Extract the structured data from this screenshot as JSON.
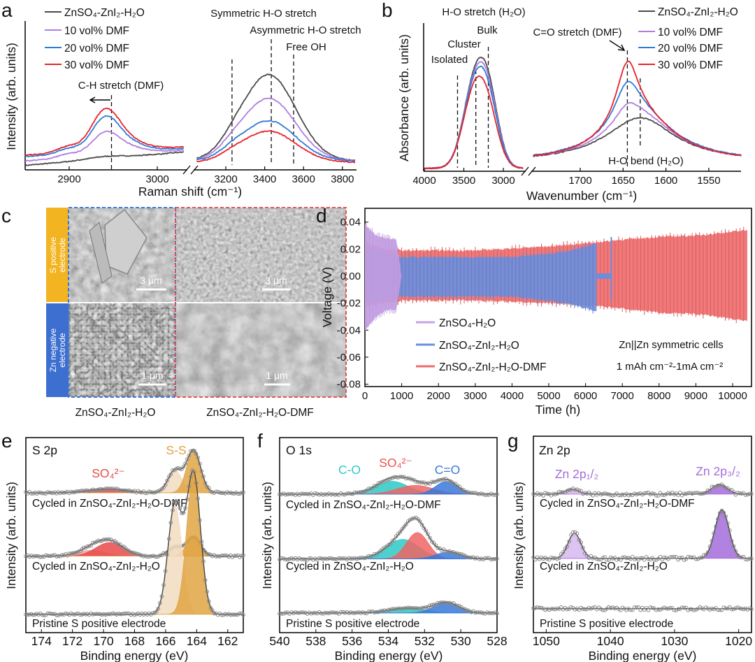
{
  "panel_letters": {
    "a": "a",
    "b": "b",
    "c": "c",
    "d": "d",
    "e": "e",
    "f": "f",
    "g": "g"
  },
  "chart_data": {
    "a": {
      "type": "line",
      "xlabel": "Raman shift (cm⁻¹)",
      "ylabel": "Intensity (arb. units)",
      "xticks": [
        2900,
        3000,
        3200,
        3400,
        3600,
        3800
      ],
      "x_segments": [
        [
          2850,
          3030
        ],
        [
          3050,
          3865
        ]
      ],
      "axis_break": true,
      "legend": [
        "ZnSO₄-ZnI₂-H₂O",
        "10 vol% DMF",
        "20 vol% DMF",
        "30 vol% DMF"
      ],
      "annotations": {
        "ch": "C-H stretch (DMF)",
        "sym": "Symmetric H-O stretch",
        "asym": "Asymmetric H-O stretch",
        "free": "Free OH"
      },
      "dashed_lines": [
        2948,
        3232,
        3434,
        3549
      ],
      "series": [
        {
          "name": "ZnSO₄-ZnI₂-H₂O",
          "color": "#4a4a4a",
          "segments": [
            {
              "shape": "gauss",
              "b": 0.03,
              "m": 0.0005,
              "peaks": [
                [
                  2940,
                  20,
                  0.015
                ]
              ]
            },
            {
              "shape": "gauss",
              "b": 0.06,
              "m": 0,
              "peaks": [
                [
                  3420,
                  140,
                  0.58
                ],
                [
                  3230,
                  60,
                  0.03
                ]
              ]
            }
          ]
        },
        {
          "name": "10 vol% DMF",
          "color": "#b07ee0",
          "segments": [
            {
              "shape": "gauss",
              "b": 0.06,
              "m": 0.0004,
              "peaks": [
                [
                  2941,
                  16,
                  0.15
                ],
                [
                  2898,
                  12,
                  0.025
                ],
                [
                  2970,
                  18,
                  0.035
                ]
              ]
            },
            {
              "shape": "gauss",
              "b": 0.06,
              "m": 0,
              "peaks": [
                [
                  3420,
                  140,
                  0.42
                ],
                [
                  3230,
                  60,
                  0.03
                ]
              ]
            }
          ]
        },
        {
          "name": "20 vol% DMF",
          "color": "#2f7bd6",
          "segments": [
            {
              "shape": "gauss",
              "b": 0.09,
              "m": 0.0003,
              "peaks": [
                [
                  2941,
                  16,
                  0.23
                ],
                [
                  2898,
                  12,
                  0.035
                ],
                [
                  2970,
                  18,
                  0.045
                ]
              ]
            },
            {
              "shape": "gauss",
              "b": 0.06,
              "m": 0,
              "peaks": [
                [
                  3420,
                  140,
                  0.27
                ],
                [
                  3230,
                  60,
                  0.025
                ]
              ]
            }
          ]
        },
        {
          "name": "30 vol% DMF",
          "color": "#e8222a",
          "segments": [
            {
              "shape": "gauss",
              "b": 0.1,
              "m": 0.0003,
              "peaks": [
                [
                  2941,
                  16,
                  0.27
                ],
                [
                  2898,
                  12,
                  0.04
                ],
                [
                  2970,
                  18,
                  0.05
                ]
              ]
            },
            {
              "shape": "gauss",
              "b": 0.05,
              "m": 0,
              "peaks": [
                [
                  3420,
                  140,
                  0.21
                ],
                [
                  3230,
                  60,
                  0.02
                ]
              ]
            }
          ]
        }
      ]
    },
    "b": {
      "type": "line",
      "xlabel": "Wavenumber (cm⁻¹)",
      "ylabel": "Absorbance (arb. units)",
      "xticks": [
        4000,
        3500,
        3000,
        1700,
        1650,
        1600,
        1550
      ],
      "x_segments": [
        [
          4000,
          2750
        ],
        [
          1755,
          1512
        ]
      ],
      "axis_break": true,
      "legend": [
        "ZnSO₄-ZnI₂-H₂O",
        "10 vol% DMF",
        "20 vol% DMF",
        "30 vol% DMF"
      ],
      "annotations": {
        "ho": "H-O stretch (H₂O)",
        "bulk": "Bulk",
        "cluster": "Cluster",
        "isolated": "Isolated",
        "co": "C=O stretch (DMF)",
        "bend": "H-O bend (H₂O)"
      },
      "dashed_lines": [
        3580,
        3348,
        3190,
        1645,
        1630
      ],
      "series": [
        {
          "name": "ZnSO₄-ZnI₂-H₂O",
          "color": "#4a4a4a",
          "segments": [
            {
              "shape": "gauss",
              "b": 0.02,
              "m": 0,
              "peaks": [
                [
                  3380,
                  140,
                  0.5
                ],
                [
                  3190,
                  130,
                  0.46
                ]
              ]
            },
            {
              "shape": "lorentz",
              "b": 0.06,
              "m": 0,
              "peaks": [
                [
                  1630,
                  50,
                  0.3
                ]
              ]
            }
          ]
        },
        {
          "name": "10 vol% DMF",
          "color": "#b07ee0",
          "segments": [
            {
              "shape": "gauss",
              "b": 0.02,
              "m": 0,
              "peaks": [
                [
                  3380,
                  140,
                  0.49
                ],
                [
                  3190,
                  130,
                  0.43
                ]
              ]
            },
            {
              "shape": "lorentz",
              "b": 0.06,
              "m": 0,
              "peaks": [
                [
                  1630,
                  50,
                  0.3
                ],
                [
                  1645,
                  18,
                  0.12
                ]
              ]
            }
          ]
        },
        {
          "name": "20 vol% DMF",
          "color": "#2f7bd6",
          "segments": [
            {
              "shape": "gauss",
              "b": 0.02,
              "m": 0,
              "peaks": [
                [
                  3380,
                  140,
                  0.48
                ],
                [
                  3190,
                  130,
                  0.4
                ]
              ]
            },
            {
              "shape": "lorentz",
              "b": 0.06,
              "m": 0,
              "peaks": [
                [
                  1630,
                  50,
                  0.3
                ],
                [
                  1645,
                  18,
                  0.27
                ]
              ]
            }
          ]
        },
        {
          "name": "30 vol% DMF",
          "color": "#e8222a",
          "segments": [
            {
              "shape": "gauss",
              "b": 0.02,
              "m": 0,
              "peaks": [
                [
                  3380,
                  140,
                  0.46
                ],
                [
                  3190,
                  130,
                  0.33
                ]
              ]
            },
            {
              "shape": "lorentz",
              "b": 0.055,
              "m": 0,
              "peaks": [
                [
                  1630,
                  50,
                  0.29
                ],
                [
                  1645,
                  16,
                  0.42
                ]
              ]
            }
          ]
        }
      ]
    },
    "d": {
      "type": "line",
      "xlabel": "Time (h)",
      "ylabel": "Voltage (V)",
      "xlim": [
        0,
        10500
      ],
      "ylim": [
        -0.08,
        0.05
      ],
      "xticks": [
        0,
        1000,
        2000,
        3000,
        4000,
        5000,
        6000,
        7000,
        8000,
        9000,
        10000
      ],
      "yticks": [
        "0.04",
        "0.02",
        "0.00",
        "-0.02",
        "-0.04",
        "-0.06",
        "-0.08"
      ],
      "legend": [
        "ZnSO₄-H₂O",
        "ZnSO₄-ZnI₂-H₂O",
        "ZnSO₄-ZnI₂-H₂O-DMF"
      ],
      "annotation_1": "Zn||Zn symmetric cells",
      "annotation_2": "1 mAh cm⁻²-1mA cm⁻²",
      "series": [
        {
          "name": "ZnSO₄-ZnI₂-H₂O-DMF",
          "color": "#f06a6a",
          "envelope": [
            [
              0,
              0.025,
              -0.022
            ],
            [
              500,
              0.02,
              -0.02
            ],
            [
              1000,
              0.019,
              -0.018
            ],
            [
              3000,
              0.019,
              -0.018
            ],
            [
              5000,
              0.022,
              -0.02
            ],
            [
              6300,
              0.025,
              -0.022
            ],
            [
              7000,
              0.027,
              -0.024
            ],
            [
              8000,
              0.029,
              -0.027
            ],
            [
              9000,
              0.03,
              -0.028
            ],
            [
              10400,
              0.034,
              -0.033
            ]
          ]
        },
        {
          "name": "ZnSO₄-ZnI₂-H₂O",
          "color": "#6b8ede",
          "envelope": [
            [
              0,
              0.022,
              -0.02
            ],
            [
              900,
              0.015,
              -0.016
            ],
            [
              1000,
              0.014,
              -0.015
            ],
            [
              4000,
              0.014,
              -0.015
            ],
            [
              5500,
              0.018,
              -0.02
            ],
            [
              6300,
              0.024,
              -0.026
            ]
          ],
          "plateau": [
            6300,
            6700,
            0.002
          ],
          "spike": [
            6700,
            0.029,
            -0.018
          ]
        },
        {
          "name": "ZnSO₄-H₂O",
          "color": "#c9a2ea",
          "envelope": [
            [
              0,
              0.038,
              -0.04
            ],
            [
              300,
              0.03,
              -0.03
            ],
            [
              600,
              0.028,
              -0.025
            ],
            [
              850,
              0.027,
              -0.025
            ],
            [
              1000,
              0.0,
              0.0
            ]
          ]
        }
      ]
    },
    "e": {
      "type": "line",
      "title": "S 2p",
      "xlabel": "Binding energy (eV)",
      "ylabel": "Intensity (arb. units)",
      "xlim": [
        175,
        161
      ],
      "xticks": [
        174,
        172,
        170,
        168,
        166,
        164,
        162
      ],
      "peak_labels": {
        "ss": "S-S",
        "so4": "SO₄²⁻"
      },
      "traces": [
        {
          "label": "Cycled in ZnSO₄-ZnI₂-H₂O-DMF",
          "offset": 71.7,
          "components": [
            [
              169.8,
              1.2,
              2,
              "#e84a4a"
            ],
            [
              165.4,
              0.45,
              11.5,
              "#f2dcc0"
            ],
            [
              164.2,
              0.45,
              21.7,
              "#e0a444"
            ]
          ]
        },
        {
          "label": "Cycled in ZnSO₄-ZnI₂-H₂O",
          "offset": 39.2,
          "components": [
            [
              170.8,
              0.9,
              3,
              "#f3a0a0"
            ],
            [
              169.6,
              0.9,
              7,
              "#e84a4a"
            ],
            [
              165.4,
              0.45,
              4.5,
              "#f2dcc0"
            ],
            [
              164.2,
              0.45,
              9.8,
              "#e0a444"
            ]
          ]
        },
        {
          "label": "Pristine S positive electrode",
          "offset": 9.4,
          "components": [
            [
              165.4,
              0.45,
              56,
              "#f2dcc0"
            ],
            [
              164.2,
              0.45,
              72,
              "#e0a444"
            ]
          ]
        }
      ]
    },
    "f": {
      "type": "line",
      "title": "O 1s",
      "xlabel": "Binding energy (eV)",
      "ylabel": "Intensity (arb. units)",
      "xlim": [
        540,
        528
      ],
      "xticks": [
        540,
        538,
        536,
        534,
        532,
        530,
        528
      ],
      "peak_labels": {
        "co": "C-O",
        "so4": "SO₄²⁻",
        "cdo": "C=O"
      },
      "traces": [
        {
          "label": "Cycled in ZnSO₄-ZnI₂-H₂O-DMF",
          "offset": 71,
          "components": [
            [
              533.8,
              0.9,
              6.6,
              "#2ec9c6"
            ],
            [
              532.5,
              1.0,
              4.5,
              "#f06464"
            ],
            [
              530.8,
              0.6,
              6.5,
              "#3b78d8"
            ]
          ]
        },
        {
          "label": "Cycled in ZnSO₄-ZnI₂-H₂O",
          "offset": 37.8,
          "components": [
            [
              533.2,
              0.9,
              10,
              "#2ec9c6"
            ],
            [
              532.4,
              0.6,
              13.5,
              "#f06464"
            ],
            [
              530.7,
              0.7,
              3.5,
              "#3b78d8"
            ]
          ]
        },
        {
          "label": "Pristine S positive electrode",
          "offset": 10.1,
          "components": [
            [
              533.0,
              1.0,
              2.5,
              "#2ec9c6"
            ],
            [
              530.8,
              0.7,
              5.3,
              "#3b78d8"
            ]
          ]
        }
      ]
    },
    "g": {
      "type": "line",
      "title": "Zn 2p",
      "xlabel": "Binding energy (eV)",
      "ylabel": "Intensity (arb. units)",
      "xlim": [
        1052,
        1018
      ],
      "xticks": [
        1050,
        1040,
        1030,
        1020
      ],
      "peak_labels": {
        "half": "Zn 2p₁/₂",
        "threehalf": "Zn 2p₃/₂"
      },
      "traces": [
        {
          "label": "Cycled in ZnSO₄-ZnI₂-H₂O-DMF",
          "offset": 70.5,
          "components": [
            [
              1046,
              1.1,
              2.4,
              "#d6b8ee"
            ],
            [
              1023,
              1.2,
              4.9,
              "#a46cdb"
            ]
          ]
        },
        {
          "label": "Cycled in ZnSO₄-ZnI₂-H₂O",
          "offset": 37.8,
          "components": [
            [
              1045.6,
              1.0,
              12.8,
              "#d6b8ee"
            ],
            [
              1022.6,
              1.1,
              24.6,
              "#a46cdb"
            ]
          ]
        },
        {
          "label": "Pristine S positive electrode",
          "offset": 12.2,
          "components": []
        }
      ]
    }
  },
  "panel_c": {
    "row_labels": [
      [
        "S positive",
        "electrode"
      ],
      [
        "Zn negative",
        "electrode"
      ]
    ],
    "captions": [
      "ZnSO₄-ZnI₂-H₂O",
      "ZnSO₄-ZnI₂-H₂O-DMF"
    ],
    "scale_bars": [
      "3 μm",
      "3 μm",
      "1 μm",
      "1 μm"
    ],
    "colors": {
      "s_strip": "#f2b421",
      "zn_strip": "#3c6fd0",
      "left_border": "#3b78d8",
      "right_border": "#e05555"
    }
  }
}
